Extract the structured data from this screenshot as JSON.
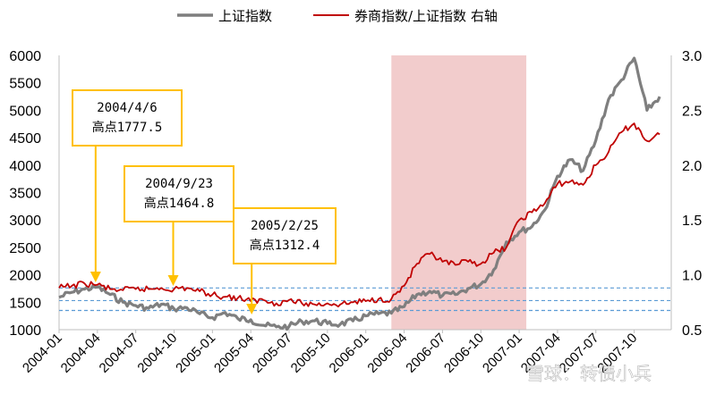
{
  "chart_data": {
    "type": "line",
    "legend": [
      {
        "label": "上证指数",
        "color": "#7f7f7f"
      },
      {
        "label": "券商指数/上证指数 右轴",
        "color": "#c00000"
      }
    ],
    "left_axis": {
      "ylim": [
        1000,
        6000
      ],
      "ticks": [
        "1000",
        "1500",
        "2000",
        "2500",
        "3000",
        "3500",
        "4000",
        "4500",
        "5000",
        "5500",
        "6000"
      ]
    },
    "right_axis": {
      "ylim": [
        0.5,
        3.0
      ],
      "ticks": [
        "0.5",
        "1.0",
        "1.5",
        "2.0",
        "2.5",
        "3.0"
      ]
    },
    "x_ticks": [
      "2004-01",
      "2004-04",
      "2004-07",
      "2004-10",
      "2005-01",
      "2005-04",
      "2005-07",
      "2005-10",
      "2006-01",
      "2006-04",
      "2006-07",
      "2006-10",
      "2007-01",
      "2007-04",
      "2007-07",
      "2007-10"
    ],
    "shaded_region": {
      "start": "2006-03",
      "end": "2007-01",
      "color": "#f2cccc"
    },
    "reference_lines": [
      {
        "axis": "right",
        "value": 0.88,
        "color": "#5b9bd5"
      },
      {
        "axis": "left",
        "value": 1530,
        "color": "#5b9bd5"
      },
      {
        "axis": "left",
        "value": 1350,
        "color": "#5b9bd5"
      }
    ],
    "series": [
      {
        "name": "上证指数",
        "axis": "left",
        "color": "#7f7f7f",
        "points": [
          [
            "2004-01",
            1590
          ],
          [
            "2004-02",
            1680
          ],
          [
            "2004-03",
            1740
          ],
          [
            "2004-04",
            1777
          ],
          [
            "2004-05",
            1640
          ],
          [
            "2004-06",
            1500
          ],
          [
            "2004-07",
            1440
          ],
          [
            "2004-08",
            1390
          ],
          [
            "2004-09",
            1464
          ],
          [
            "2004-10",
            1380
          ],
          [
            "2004-11",
            1400
          ],
          [
            "2004-12",
            1290
          ],
          [
            "2005-01",
            1220
          ],
          [
            "2005-02",
            1312
          ],
          [
            "2005-03",
            1200
          ],
          [
            "2005-04",
            1180
          ],
          [
            "2005-05",
            1080
          ],
          [
            "2005-06",
            1050
          ],
          [
            "2005-07",
            1060
          ],
          [
            "2005-08",
            1150
          ],
          [
            "2005-09",
            1160
          ],
          [
            "2005-10",
            1110
          ],
          [
            "2005-11",
            1100
          ],
          [
            "2005-12",
            1160
          ],
          [
            "2006-01",
            1250
          ],
          [
            "2006-02",
            1290
          ],
          [
            "2006-03",
            1300
          ],
          [
            "2006-04",
            1420
          ],
          [
            "2006-05",
            1640
          ],
          [
            "2006-06",
            1700
          ],
          [
            "2006-07",
            1620
          ],
          [
            "2006-08",
            1640
          ],
          [
            "2006-09",
            1750
          ],
          [
            "2006-10",
            1830
          ],
          [
            "2006-11",
            2090
          ],
          [
            "2006-12",
            2600
          ],
          [
            "2007-01",
            2780
          ],
          [
            "2007-02",
            2880
          ],
          [
            "2007-03",
            3180
          ],
          [
            "2007-04",
            3800
          ],
          [
            "2007-05",
            4100
          ],
          [
            "2007-06",
            3900
          ],
          [
            "2007-07",
            4450
          ],
          [
            "2007-08",
            5200
          ],
          [
            "2007-09",
            5550
          ],
          [
            "2007-10",
            5950
          ],
          [
            "2007-11",
            5000
          ],
          [
            "2007-12",
            5250
          ]
        ]
      },
      {
        "name": "券商指数/上证指数 右轴",
        "axis": "right",
        "color": "#c00000",
        "points": [
          [
            "2004-01",
            0.88
          ],
          [
            "2004-02",
            0.9
          ],
          [
            "2004-03",
            0.92
          ],
          [
            "2004-04",
            0.91
          ],
          [
            "2004-05",
            0.87
          ],
          [
            "2004-06",
            0.86
          ],
          [
            "2004-07",
            0.87
          ],
          [
            "2004-08",
            0.87
          ],
          [
            "2004-09",
            0.88
          ],
          [
            "2004-10",
            0.87
          ],
          [
            "2004-11",
            0.88
          ],
          [
            "2004-12",
            0.85
          ],
          [
            "2005-01",
            0.82
          ],
          [
            "2005-02",
            0.8
          ],
          [
            "2005-03",
            0.79
          ],
          [
            "2005-04",
            0.76
          ],
          [
            "2005-05",
            0.77
          ],
          [
            "2005-06",
            0.74
          ],
          [
            "2005-07",
            0.77
          ],
          [
            "2005-08",
            0.74
          ],
          [
            "2005-09",
            0.73
          ],
          [
            "2005-10",
            0.74
          ],
          [
            "2005-11",
            0.73
          ],
          [
            "2005-12",
            0.75
          ],
          [
            "2006-01",
            0.76
          ],
          [
            "2006-02",
            0.78
          ],
          [
            "2006-03",
            0.78
          ],
          [
            "2006-04",
            0.9
          ],
          [
            "2006-05",
            1.1
          ],
          [
            "2006-06",
            1.19
          ],
          [
            "2006-07",
            1.12
          ],
          [
            "2006-08",
            1.09
          ],
          [
            "2006-09",
            1.12
          ],
          [
            "2006-10",
            1.1
          ],
          [
            "2006-11",
            1.2
          ],
          [
            "2006-12",
            1.25
          ],
          [
            "2007-01",
            1.5
          ],
          [
            "2007-02",
            1.57
          ],
          [
            "2007-03",
            1.65
          ],
          [
            "2007-04",
            1.83
          ],
          [
            "2007-05",
            1.85
          ],
          [
            "2007-06",
            1.82
          ],
          [
            "2007-07",
            2.0
          ],
          [
            "2007-08",
            2.12
          ],
          [
            "2007-09",
            2.3
          ],
          [
            "2007-10",
            2.38
          ],
          [
            "2007-11",
            2.22
          ],
          [
            "2007-12",
            2.28
          ]
        ]
      }
    ],
    "annotations": [
      {
        "date_label": "2004/4/6",
        "text": "高点1777.5",
        "target": "2004-04"
      },
      {
        "date_label": "2004/9/23",
        "text": "高点1464.8",
        "target": "2004-10"
      },
      {
        "date_label": "2005/2/25",
        "text": "高点1312.4",
        "target": "2005-04"
      }
    ]
  },
  "watermark": "雪球：转债小兵"
}
